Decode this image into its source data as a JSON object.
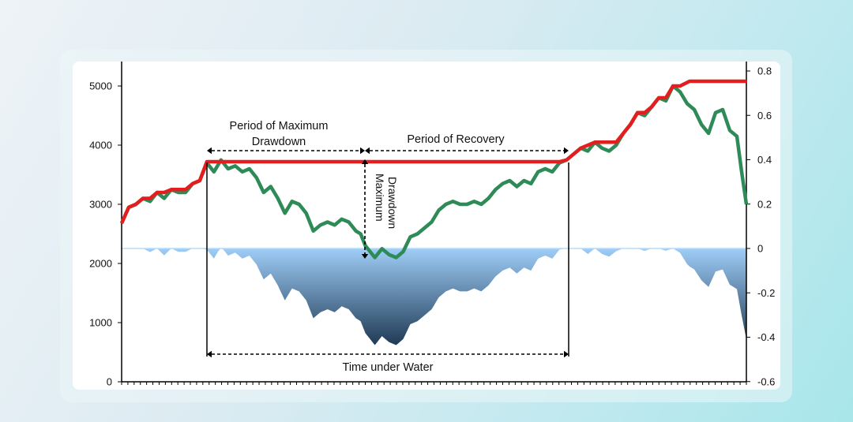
{
  "chart_data": {
    "type": "line",
    "title": "",
    "y_left": {
      "ticks": [
        "5000",
        "4000",
        "3000",
        "2000",
        "1000",
        "0"
      ],
      "range": [
        0,
        5300
      ]
    },
    "y_right": {
      "ticks": [
        "0.8",
        "0.6",
        "0.4",
        "0.2",
        "0",
        "-0.2",
        "-0.4",
        "-0.6"
      ],
      "range": [
        -0.6,
        0.82
      ]
    },
    "series": [
      {
        "kind": "price",
        "color": "#2e8b57",
        "points": [
          [
            0,
            2680
          ],
          [
            3,
            2950
          ],
          [
            6,
            3000
          ],
          [
            9,
            3100
          ],
          [
            12,
            3050
          ],
          [
            15,
            3200
          ],
          [
            18,
            3100
          ],
          [
            21,
            3250
          ],
          [
            24,
            3200
          ],
          [
            27,
            3200
          ],
          [
            30,
            3350
          ],
          [
            33,
            3400
          ],
          [
            36,
            3700
          ],
          [
            39,
            3550
          ],
          [
            42,
            3750
          ],
          [
            45,
            3600
          ],
          [
            48,
            3650
          ],
          [
            51,
            3550
          ],
          [
            54,
            3600
          ],
          [
            57,
            3450
          ],
          [
            60,
            3200
          ],
          [
            63,
            3300
          ],
          [
            66,
            3100
          ],
          [
            69,
            2850
          ],
          [
            72,
            3050
          ],
          [
            75,
            3000
          ],
          [
            78,
            2850
          ],
          [
            81,
            2550
          ],
          [
            84,
            2650
          ],
          [
            87,
            2700
          ],
          [
            90,
            2650
          ],
          [
            93,
            2750
          ],
          [
            96,
            2700
          ],
          [
            99,
            2550
          ],
          [
            101,
            2500
          ],
          [
            103,
            2300
          ],
          [
            105,
            2200
          ],
          [
            107,
            2100
          ],
          [
            110,
            2250
          ],
          [
            113,
            2150
          ],
          [
            116,
            2100
          ],
          [
            119,
            2200
          ],
          [
            122,
            2450
          ],
          [
            125,
            2500
          ],
          [
            128,
            2600
          ],
          [
            131,
            2700
          ],
          [
            134,
            2900
          ],
          [
            137,
            3000
          ],
          [
            140,
            3050
          ],
          [
            143,
            3000
          ],
          [
            146,
            3000
          ],
          [
            149,
            3050
          ],
          [
            152,
            3000
          ],
          [
            155,
            3100
          ],
          [
            158,
            3250
          ],
          [
            161,
            3350
          ],
          [
            164,
            3400
          ],
          [
            167,
            3300
          ],
          [
            170,
            3400
          ],
          [
            173,
            3350
          ],
          [
            176,
            3550
          ],
          [
            179,
            3600
          ],
          [
            182,
            3550
          ],
          [
            185,
            3700
          ],
          [
            188,
            3750
          ],
          [
            191,
            3850
          ],
          [
            194,
            3950
          ],
          [
            197,
            3900
          ],
          [
            200,
            4050
          ],
          [
            203,
            3950
          ],
          [
            206,
            3900
          ],
          [
            209,
            4000
          ],
          [
            212,
            4200
          ],
          [
            215,
            4350
          ],
          [
            218,
            4550
          ],
          [
            221,
            4500
          ],
          [
            224,
            4650
          ],
          [
            227,
            4800
          ],
          [
            230,
            4750
          ],
          [
            233,
            5000
          ],
          [
            236,
            4900
          ],
          [
            239,
            4700
          ],
          [
            242,
            4600
          ],
          [
            245,
            4350
          ],
          [
            248,
            4200
          ],
          [
            251,
            4550
          ],
          [
            254,
            4600
          ],
          [
            257,
            4250
          ],
          [
            260,
            4150
          ],
          [
            262,
            3550
          ],
          [
            264,
            3000
          ]
        ]
      },
      {
        "kind": "high-water mark",
        "color": "#e41e1e",
        "points": [
          [
            0,
            2680
          ],
          [
            3,
            2950
          ],
          [
            6,
            3000
          ],
          [
            9,
            3100
          ],
          [
            12,
            3100
          ],
          [
            15,
            3200
          ],
          [
            18,
            3200
          ],
          [
            21,
            3250
          ],
          [
            24,
            3250
          ],
          [
            27,
            3250
          ],
          [
            30,
            3350
          ],
          [
            33,
            3400
          ],
          [
            36,
            3720
          ],
          [
            185,
            3720
          ],
          [
            188,
            3750
          ],
          [
            191,
            3850
          ],
          [
            194,
            3950
          ],
          [
            200,
            4050
          ],
          [
            206,
            4050
          ],
          [
            209,
            4050
          ],
          [
            212,
            4200
          ],
          [
            215,
            4350
          ],
          [
            218,
            4550
          ],
          [
            221,
            4550
          ],
          [
            224,
            4650
          ],
          [
            227,
            4800
          ],
          [
            230,
            4800
          ],
          [
            233,
            5000
          ],
          [
            236,
            5000
          ],
          [
            240,
            5080
          ],
          [
            264,
            5080
          ]
        ]
      }
    ],
    "annotations": {
      "max_dd_period_line1": "Period of Maximum",
      "max_dd_period_line2": "Drawdown",
      "recovery": "Period of Recovery",
      "max_dd_line1": "Maximum",
      "max_dd_line2": "Drawdown",
      "time_under_water": "Time under Water"
    },
    "colors": {
      "water_light": "#9fcdf7",
      "water_dark": "#1f3a55"
    }
  }
}
